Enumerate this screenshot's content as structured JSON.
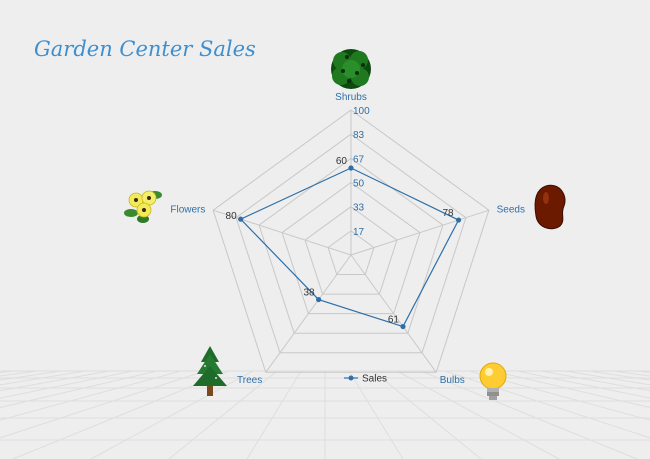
{
  "title": "Garden Center Sales",
  "chart_data": {
    "type": "radar",
    "categories": [
      "Shrubs",
      "Seeds",
      "Bulbs",
      "Trees",
      "Flowers"
    ],
    "category_icons": [
      "shrub-icon",
      "bean-seed-icon",
      "light-bulb-icon",
      "pine-tree-icon",
      "flower-bouquet-icon"
    ],
    "series": [
      {
        "name": "Sales",
        "values": [
          60,
          78,
          61,
          38,
          80
        ],
        "color": "#2f6fa8"
      }
    ],
    "rlim": [
      0,
      100
    ],
    "rticks": [
      "17",
      "33",
      "50",
      "67",
      "83",
      "100"
    ],
    "grid": true,
    "legend": "bottom"
  },
  "colors": {
    "background": "#eeeeee",
    "grid": "#c8c8c8",
    "title": "#3d8fd0",
    "series": "#2f6fa8"
  }
}
